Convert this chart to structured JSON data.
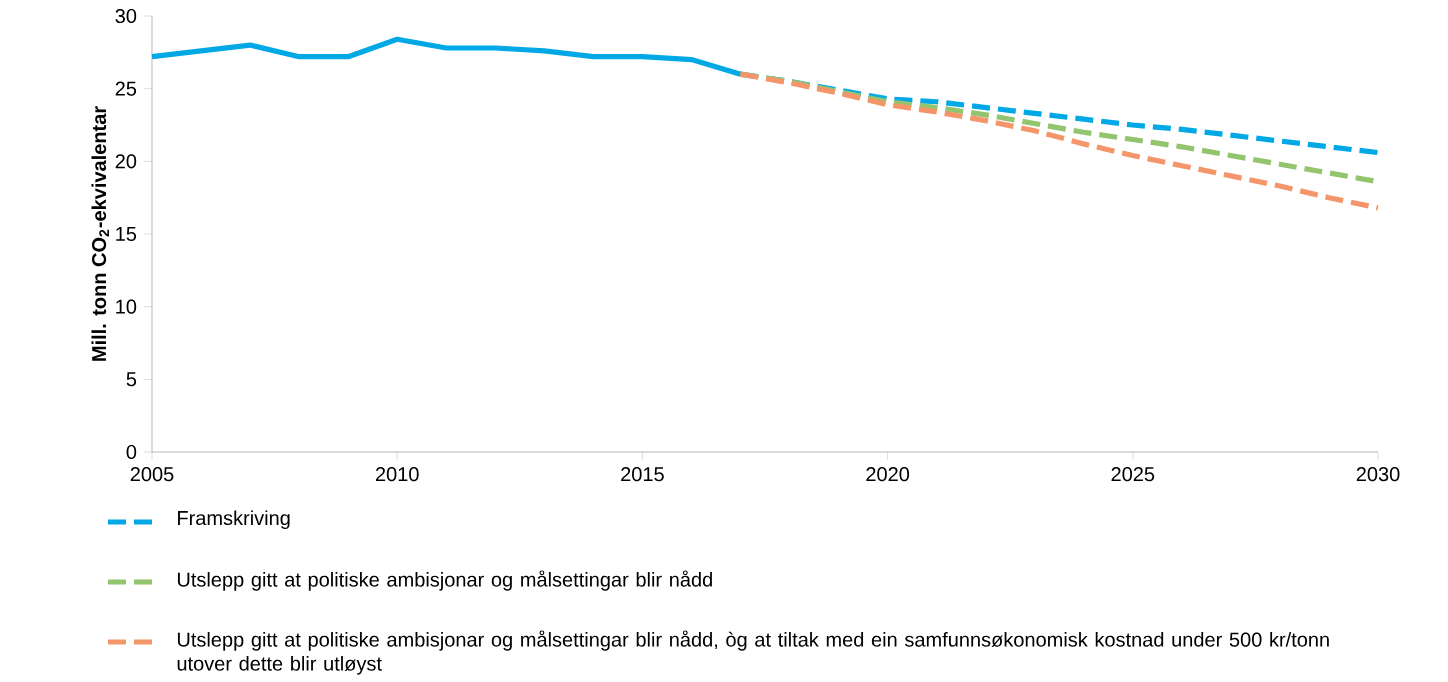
{
  "chart_data": {
    "type": "line",
    "ylabel": "Mill. tonn CO$_{2}$-ekvivalentar",
    "xlim": [
      2005,
      2030
    ],
    "xticks": [
      2005,
      2010,
      2015,
      2020,
      2025,
      2030
    ],
    "ylim": [
      0,
      30
    ],
    "yticks": [
      0,
      5,
      10,
      15,
      20,
      25,
      30
    ],
    "grid": false,
    "legend": "bottom",
    "series": [
      {
        "color": "#00a9e6",
        "line_style": "solid",
        "x": [
          2005,
          2006,
          2007,
          2008,
          2009,
          2010,
          2011,
          2012,
          2013,
          2014,
          2015,
          2016,
          2017
        ],
        "values": [
          27.2,
          27.6,
          28.0,
          27.2,
          27.2,
          28.4,
          27.8,
          27.8,
          27.6,
          27.2,
          27.2,
          27.0,
          26.0
        ]
      },
      {
        "name": "Framskriving",
        "color": "#00a9e6",
        "line_style": "dashed",
        "x": [
          2017,
          2018,
          2019,
          2020,
          2021,
          2022,
          2023,
          2024,
          2025,
          2026,
          2027,
          2028,
          2029,
          2030
        ],
        "values": [
          26.0,
          25.5,
          24.9,
          24.3,
          24.1,
          23.7,
          23.3,
          22.9,
          22.5,
          22.2,
          21.8,
          21.4,
          21.0,
          20.6
        ]
      },
      {
        "name": "Utslepp gitt at politiske ambisjonar og målsettingar blir nådd",
        "color": "#92c56e",
        "line_style": "dashed",
        "x": [
          2017,
          2018,
          2019,
          2020,
          2021,
          2022,
          2023,
          2024,
          2025,
          2026,
          2027,
          2028,
          2029,
          2030
        ],
        "values": [
          26.0,
          25.5,
          24.8,
          24.1,
          23.7,
          23.2,
          22.6,
          22.0,
          21.5,
          21.0,
          20.4,
          19.8,
          19.2,
          18.6
        ]
      },
      {
        "name": "Utslepp gitt at politiske ambisjonar og målsettingar blir nådd, òg at tiltak med ein samfunnsøkonomisk kostnad under 500 kr/tonn utover dette blir utløyst",
        "color": "#f4956a",
        "line_style": "dashed",
        "x": [
          2017,
          2018,
          2019,
          2020,
          2021,
          2022,
          2023,
          2024,
          2025,
          2026,
          2027,
          2028,
          2029,
          2030
        ],
        "values": [
          26.0,
          25.4,
          24.7,
          23.9,
          23.4,
          22.8,
          22.1,
          21.2,
          20.4,
          19.7,
          19.0,
          18.3,
          17.5,
          16.8
        ]
      }
    ]
  }
}
